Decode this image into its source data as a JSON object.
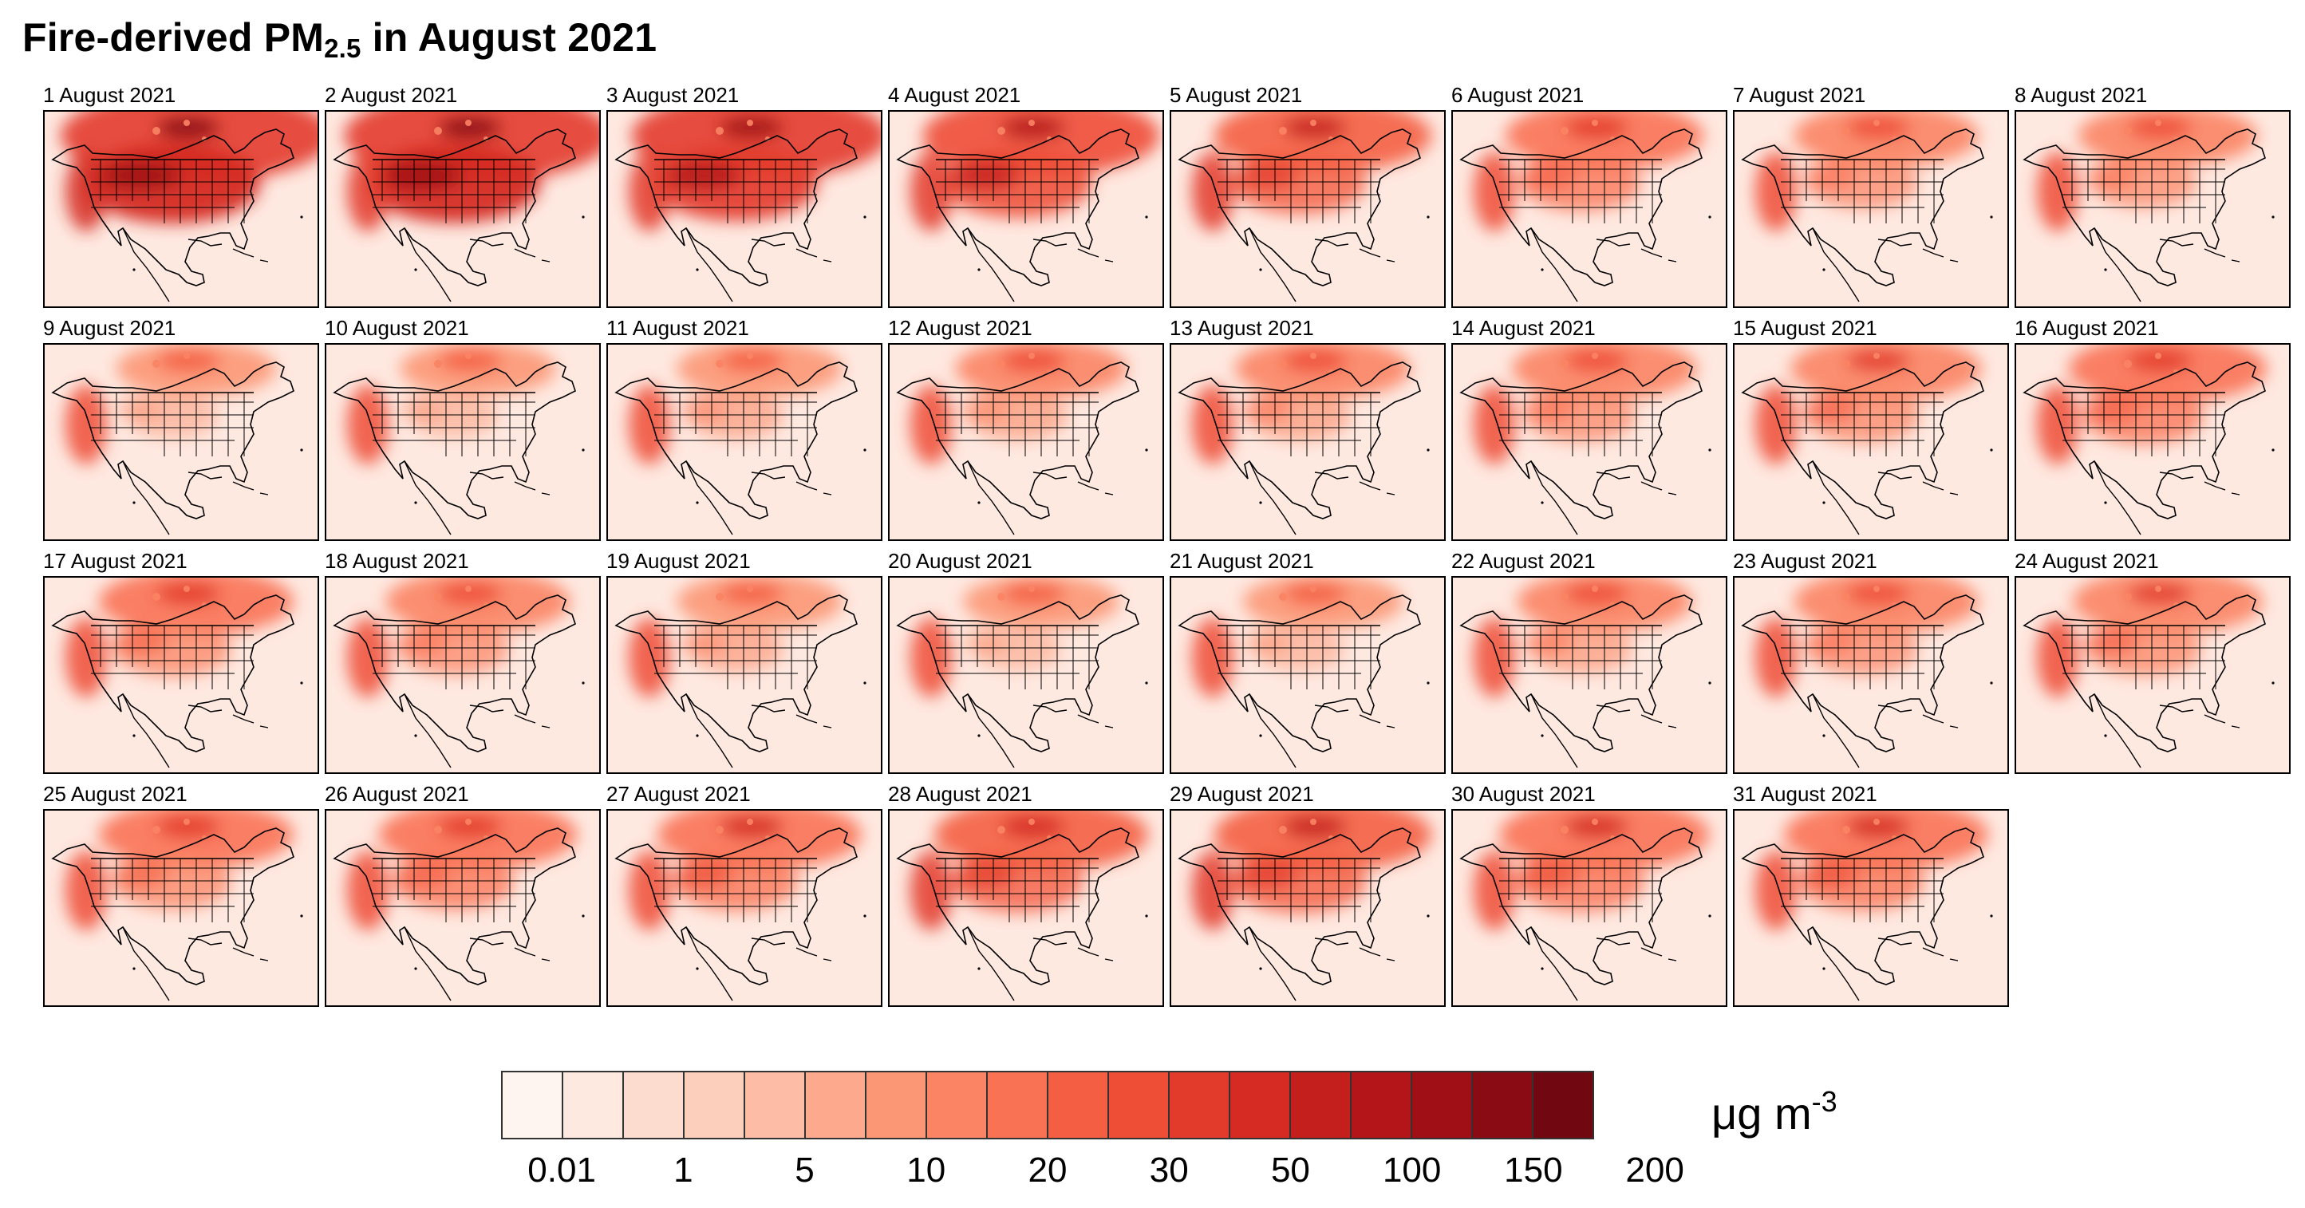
{
  "figure": {
    "title_main": "Fire-derived PM",
    "title_sub": "2.5",
    "title_tail": " in August 2021"
  },
  "panels": [
    {
      "label": "1 August 2021",
      "intensity": 1.0
    },
    {
      "label": "2 August 2021",
      "intensity": 0.98
    },
    {
      "label": "3 August 2021",
      "intensity": 0.92
    },
    {
      "label": "4 August 2021",
      "intensity": 0.82
    },
    {
      "label": "5 August 2021",
      "intensity": 0.72
    },
    {
      "label": "6 August 2021",
      "intensity": 0.62
    },
    {
      "label": "7 August 2021",
      "intensity": 0.55
    },
    {
      "label": "8 August 2021",
      "intensity": 0.52
    },
    {
      "label": "9 August 2021",
      "intensity": 0.42
    },
    {
      "label": "10 August 2021",
      "intensity": 0.4
    },
    {
      "label": "11 August 2021",
      "intensity": 0.45
    },
    {
      "label": "12 August 2021",
      "intensity": 0.48
    },
    {
      "label": "13 August 2021",
      "intensity": 0.5
    },
    {
      "label": "14 August 2021",
      "intensity": 0.55
    },
    {
      "label": "15 August 2021",
      "intensity": 0.58
    },
    {
      "label": "16 August 2021",
      "intensity": 0.62
    },
    {
      "label": "17 August 2021",
      "intensity": 0.6
    },
    {
      "label": "18 August 2021",
      "intensity": 0.55
    },
    {
      "label": "19 August 2021",
      "intensity": 0.45
    },
    {
      "label": "20 August 2021",
      "intensity": 0.4
    },
    {
      "label": "21 August 2021",
      "intensity": 0.42
    },
    {
      "label": "22 August 2021",
      "intensity": 0.5
    },
    {
      "label": "23 August 2021",
      "intensity": 0.55
    },
    {
      "label": "24 August 2021",
      "intensity": 0.58
    },
    {
      "label": "25 August 2021",
      "intensity": 0.6
    },
    {
      "label": "26 August 2021",
      "intensity": 0.62
    },
    {
      "label": "27 August 2021",
      "intensity": 0.65
    },
    {
      "label": "28 August 2021",
      "intensity": 0.7
    },
    {
      "label": "29 August 2021",
      "intensity": 0.72
    },
    {
      "label": "30 August 2021",
      "intensity": 0.68
    },
    {
      "label": "31 August 2021",
      "intensity": 0.65
    }
  ],
  "colorbar": {
    "colors": [
      "#fff5f0",
      "#fee9e1",
      "#fddcd0",
      "#fccfbd",
      "#fcbca5",
      "#fca98d",
      "#fc9776",
      "#fb8464",
      "#fa7254",
      "#f45f44",
      "#ee4d36",
      "#e33b2b",
      "#d52b22",
      "#c41f1d",
      "#b31519",
      "#a00f16",
      "#8a0b13",
      "#700711"
    ],
    "ticks": [
      "0.01",
      "1",
      "5",
      "10",
      "20",
      "30",
      "50",
      "100",
      "150",
      "200"
    ],
    "unit_main": "μg m",
    "unit_sup": "-3"
  }
}
